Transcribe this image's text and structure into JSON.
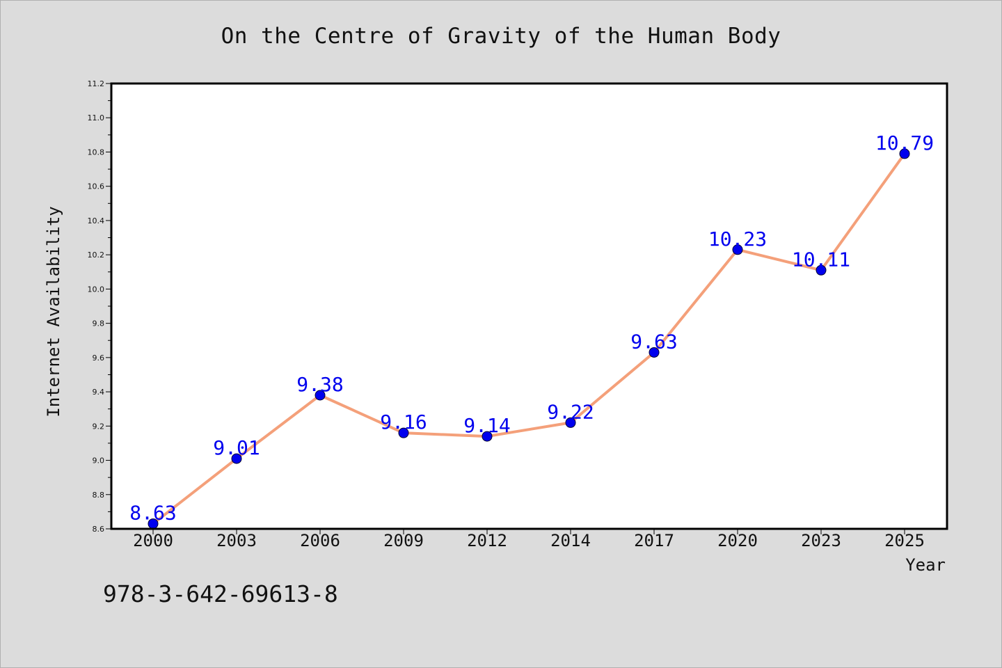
{
  "page": {
    "footer_code": "978-3-642-69613-8"
  },
  "colors": {
    "background": "#dcdcdc",
    "line": "#f4a07a",
    "marker": "#0000ee",
    "label": "#0000ee",
    "axis": "#000000"
  },
  "chart_data": {
    "type": "line",
    "title": "On the Centre of Gravity of the Human Body",
    "xlabel": "Year",
    "ylabel": "Internet Availability",
    "categories": [
      "2000",
      "2003",
      "2006",
      "2009",
      "2012",
      "2014",
      "2017",
      "2020",
      "2023",
      "2025"
    ],
    "series": [
      {
        "values": [
          8.63,
          9.01,
          9.38,
          9.16,
          9.14,
          9.22,
          9.63,
          10.23,
          10.11,
          10.79
        ],
        "labels": [
          "8.63",
          "9.01",
          "9.38",
          "9.16",
          "9.14",
          "9.22",
          "9.63",
          "10.23",
          "10.11",
          "10.79"
        ]
      }
    ],
    "ylim": [
      8.6,
      11.2
    ],
    "yticks": [
      "8.6",
      "8.8",
      "9.0",
      "9.2",
      "9.4",
      "9.6",
      "9.8",
      "10.0",
      "10.2",
      "10.4",
      "10.6",
      "10.8",
      "11.0",
      "11.2"
    ],
    "grid": false,
    "legend": "none"
  }
}
